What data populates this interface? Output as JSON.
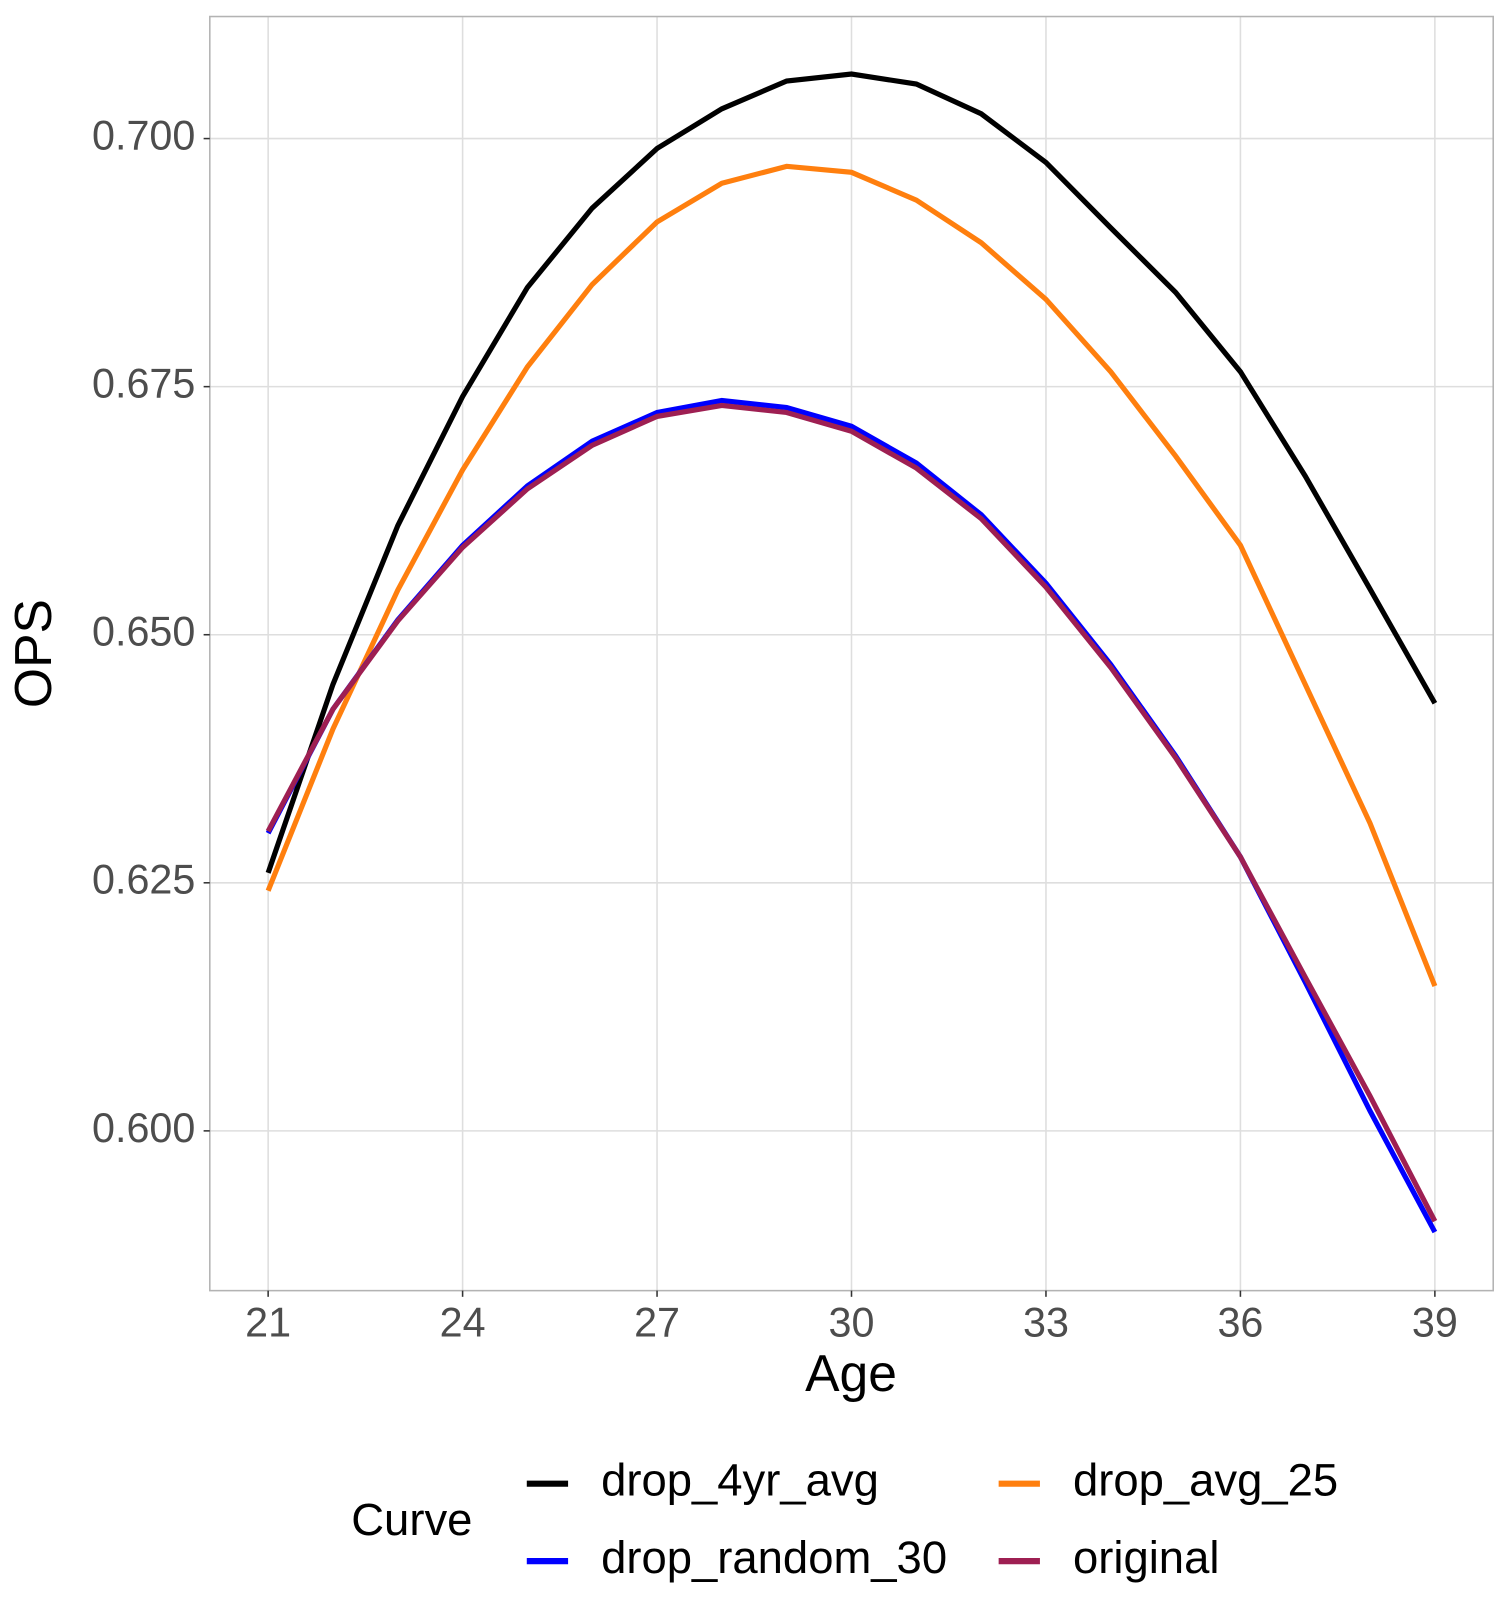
{
  "chart_data": {
    "type": "line",
    "x_label": "Age",
    "y_label": "OPS",
    "legend_title": "Curve",
    "legend_position": "bottom",
    "grid": true,
    "x": [
      21,
      22,
      23,
      24,
      25,
      26,
      27,
      28,
      29,
      30,
      31,
      32,
      33,
      34,
      35,
      36,
      37,
      38,
      39
    ],
    "series": [
      {
        "name": "drop_4yr_avg",
        "color": "#000000",
        "values": [
          0.626,
          0.645,
          0.661,
          0.674,
          0.685,
          0.693,
          0.699,
          0.703,
          0.7058,
          0.7065,
          0.7055,
          0.7025,
          0.6976,
          0.691,
          0.6845,
          0.6765,
          0.666,
          0.6546,
          0.6431
        ]
      },
      {
        "name": "drop_avg_25",
        "color": "#ff7f0e",
        "values": [
          0.6242,
          0.6405,
          0.6545,
          0.6666,
          0.677,
          0.6853,
          0.6916,
          0.6955,
          0.6972,
          0.6966,
          0.6938,
          0.6895,
          0.6838,
          0.6765,
          0.668,
          0.659,
          0.645,
          0.631,
          0.6146
        ]
      },
      {
        "name": "drop_random_30",
        "color": "#0000ff",
        "values": [
          0.63,
          0.6425,
          0.6515,
          0.659,
          0.665,
          0.6695,
          0.6724,
          0.6736,
          0.6729,
          0.671,
          0.6673,
          0.6621,
          0.6552,
          0.647,
          0.6378,
          0.6276,
          0.615,
          0.602,
          0.5898
        ]
      },
      {
        "name": "original",
        "color": "#9e1f52",
        "values": [
          0.6302,
          0.6425,
          0.6514,
          0.6588,
          0.6647,
          0.6691,
          0.672,
          0.6731,
          0.6724,
          0.6705,
          0.6668,
          0.6617,
          0.6548,
          0.6467,
          0.6376,
          0.6276,
          0.6155,
          0.6035,
          0.5909
        ]
      }
    ],
    "xlim": [
      20.1,
      39.9
    ],
    "xticks": [
      21,
      24,
      27,
      30,
      33,
      36,
      39
    ],
    "ylim": [
      0.5839,
      0.7123
    ],
    "yticks": [
      {
        "value": 0.6,
        "label": "0.600"
      },
      {
        "value": 0.625,
        "label": "0.625"
      },
      {
        "value": 0.65,
        "label": "0.650"
      },
      {
        "value": 0.675,
        "label": "0.675"
      },
      {
        "value": 0.7,
        "label": "0.700"
      }
    ]
  }
}
